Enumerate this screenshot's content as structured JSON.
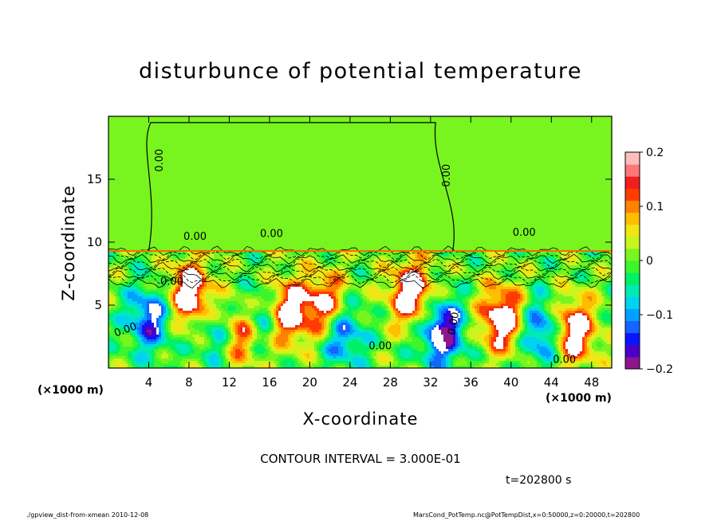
{
  "title": "disturbunce of potential temperature",
  "contour_interval": "CONTOUR INTERVAL = 3.000E-01",
  "time_label": "t=202800 s",
  "footer_left": "./gpview_dist-from-xmean  2010-12-08",
  "footer_right": "MarsCond_PotTemp.nc@PotTempDist,x=0:50000,z=0:20000,t=202800",
  "chart_data": {
    "type": "heatmap",
    "title": "disturbunce of potential temperature",
    "xlabel": "X-coordinate",
    "ylabel": "Z-coordinate",
    "x_unit": "(×1000 m)",
    "xlim": [
      0,
      50
    ],
    "ylim": [
      0,
      20
    ],
    "x_ticks": [
      4,
      8,
      12,
      16,
      20,
      24,
      28,
      32,
      36,
      40,
      44,
      48
    ],
    "y_ticks": [
      5,
      10,
      15
    ],
    "colorbar": {
      "range": [
        -0.2,
        0.2
      ],
      "ticks": [
        {
          "value": 0.2,
          "label": "0.2"
        },
        {
          "value": 0.1,
          "label": "0.1"
        },
        {
          "value": 0,
          "label": "0"
        },
        {
          "value": -0.1,
          "label": "−0.1"
        },
        {
          "value": -0.2,
          "label": "−0.2"
        }
      ],
      "colors": [
        "#8c168c",
        "#4b00c8",
        "#0a14ff",
        "#1464ff",
        "#00a0ff",
        "#00d2f0",
        "#00ebb4",
        "#00f064",
        "#3cf52d",
        "#78f51e",
        "#c8f51e",
        "#f0e614",
        "#ffbe00",
        "#ff8200",
        "#ff3c00",
        "#f01e1e",
        "#ff7878",
        "#ffbebe"
      ]
    },
    "contour_labels": [
      {
        "text": "0.00",
        "x": 5.4,
        "z": 16.5,
        "rotate": -90
      },
      {
        "text": "0.00",
        "x": 33.9,
        "z": 15.3,
        "rotate": -90
      },
      {
        "text": "0.00",
        "x": 8.6,
        "z": 10.2,
        "rotate": 0
      },
      {
        "text": "0.00",
        "x": 16.2,
        "z": 10.4,
        "rotate": 0
      },
      {
        "text": "0.00",
        "x": 41.3,
        "z": 10.5,
        "rotate": 0
      },
      {
        "text": "0.00",
        "x": 6.3,
        "z": 6.6,
        "rotate": 0
      },
      {
        "text": "0.00",
        "x": 1.8,
        "z": 2.8,
        "rotate": -20
      },
      {
        "text": "0.00",
        "x": 27.0,
        "z": 1.5,
        "rotate": 0
      },
      {
        "text": "0.00",
        "x": 34.6,
        "z": 3.5,
        "rotate": -80
      },
      {
        "text": "0.00",
        "x": 45.3,
        "z": 0.4,
        "rotate": 0
      }
    ],
    "field": {
      "upper_layer": {
        "z_range": [
          9.3,
          20
        ],
        "value": 0
      },
      "boundary_z": 9.3,
      "mixed_layer": {
        "z_range": [
          0,
          9.3
        ]
      },
      "features": [
        {
          "x": 8.0,
          "z": 6.0,
          "value": 0.2
        },
        {
          "x": 13.0,
          "z": 3.0,
          "value": 0.2
        },
        {
          "x": 17.5,
          "z": 4.5,
          "value": 0.2
        },
        {
          "x": 21.5,
          "z": 5.0,
          "value": 0.18
        },
        {
          "x": 30.0,
          "z": 6.0,
          "value": 0.2
        },
        {
          "x": 39.0,
          "z": 4.0,
          "value": 0.2
        },
        {
          "x": 46.0,
          "z": 3.0,
          "value": 0.2
        },
        {
          "x": 4.0,
          "z": 4.0,
          "value": -0.15
        },
        {
          "x": 11.0,
          "z": 3.0,
          "value": -0.12
        },
        {
          "x": 15.0,
          "z": 4.0,
          "value": -0.15
        },
        {
          "x": 23.0,
          "z": 3.0,
          "value": -0.15
        },
        {
          "x": 33.0,
          "z": 3.0,
          "value": -0.2
        },
        {
          "x": 43.0,
          "z": 3.0,
          "value": -0.15
        }
      ]
    }
  }
}
